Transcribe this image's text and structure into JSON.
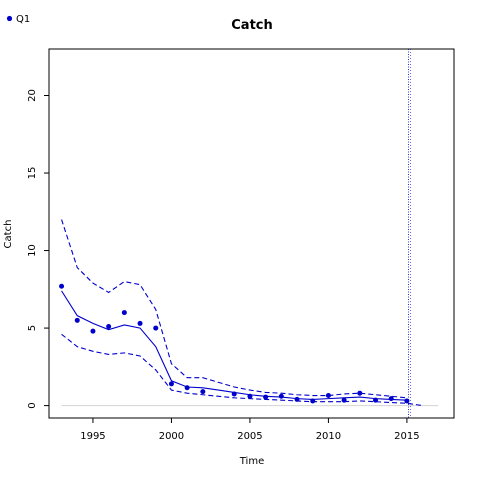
{
  "legend": {
    "label": "Q1",
    "color": "#0000cd"
  },
  "chart_data": {
    "type": "line",
    "title": "Catch",
    "xlabel": "Time",
    "ylabel": "Catch",
    "xlim": [
      1992.2,
      2018.0
    ],
    "ylim": [
      -0.8,
      23.0
    ],
    "x_ticks": [
      1995,
      2000,
      2005,
      2010,
      2015
    ],
    "y_ticks": [
      0,
      5,
      10,
      15,
      20
    ],
    "grid": false,
    "legend_position": "top-left",
    "colors": {
      "series": "#0000cd",
      "zero_line": "#d3d3d3",
      "vline": "#0000cd"
    },
    "vertical_line_x": 2015.1,
    "series": [
      {
        "name": "Q1",
        "kind": "points",
        "x": [
          1993,
          1994,
          1995,
          1996,
          1997,
          1998,
          1999,
          2000,
          2001,
          2002,
          2004,
          2005,
          2006,
          2007,
          2008,
          2009,
          2010,
          2011,
          2012,
          2013,
          2014,
          2015
        ],
        "y": [
          7.7,
          5.5,
          4.8,
          5.1,
          6.0,
          5.3,
          5.0,
          1.4,
          1.15,
          0.9,
          0.75,
          0.6,
          0.55,
          0.6,
          0.4,
          0.3,
          0.65,
          0.35,
          0.8,
          0.35,
          0.45,
          0.3
        ]
      },
      {
        "kind": "fitted",
        "style": "solid",
        "x": [
          1993,
          1994,
          1995,
          1996,
          1997,
          1998,
          1999,
          2000,
          2001,
          2002,
          2003,
          2004,
          2005,
          2006,
          2007,
          2008,
          2009,
          2010,
          2011,
          2012,
          2013,
          2014,
          2015
        ],
        "y": [
          7.4,
          5.8,
          5.3,
          4.9,
          5.2,
          5.0,
          3.8,
          1.6,
          1.2,
          1.15,
          1.0,
          0.85,
          0.7,
          0.6,
          0.55,
          0.45,
          0.4,
          0.45,
          0.5,
          0.55,
          0.45,
          0.4,
          0.35
        ]
      },
      {
        "kind": "upper_bound",
        "style": "dashed",
        "x": [
          1993,
          1994,
          1995,
          1996,
          1997,
          1998,
          1999,
          2000,
          2001,
          2002,
          2003,
          2004,
          2005,
          2006,
          2007,
          2008,
          2009,
          2010,
          2011,
          2012,
          2013,
          2014,
          2015
        ],
        "y": [
          12.0,
          8.9,
          7.9,
          7.3,
          8.0,
          7.8,
          6.2,
          2.7,
          1.8,
          1.8,
          1.5,
          1.2,
          1.0,
          0.85,
          0.8,
          0.7,
          0.65,
          0.65,
          0.75,
          0.8,
          0.7,
          0.6,
          0.5
        ]
      },
      {
        "kind": "lower_bound",
        "style": "dashed",
        "x": [
          1993,
          1994,
          1995,
          1996,
          1997,
          1998,
          1999,
          2000,
          2001,
          2002,
          2003,
          2004,
          2005,
          2006,
          2007,
          2008,
          2009,
          2010,
          2011,
          2012,
          2013,
          2014,
          2015,
          2016
        ],
        "y": [
          4.6,
          3.8,
          3.5,
          3.3,
          3.4,
          3.2,
          2.3,
          1.0,
          0.8,
          0.7,
          0.6,
          0.5,
          0.45,
          0.4,
          0.35,
          0.3,
          0.25,
          0.25,
          0.25,
          0.3,
          0.25,
          0.2,
          0.15,
          0.0
        ]
      }
    ]
  }
}
